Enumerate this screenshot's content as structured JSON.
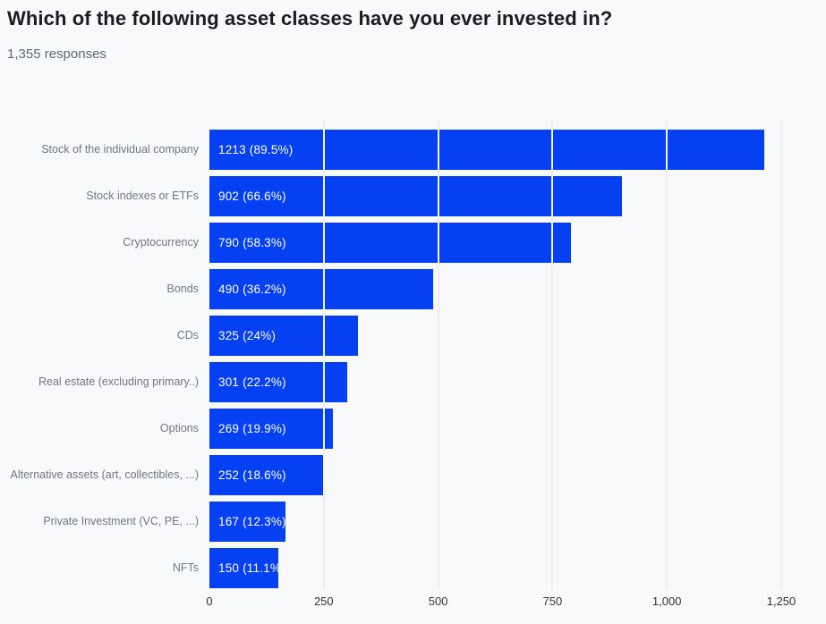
{
  "header": {
    "title": "Which of the following asset classes have you ever invested in?",
    "subtitle": "1,355 responses"
  },
  "chart_data": {
    "type": "bar",
    "orientation": "horizontal",
    "title": "Which of the following asset classes have you ever invested in?",
    "subtitle": "1,355 responses",
    "total_responses": 1355,
    "categories": [
      "Stock of the individual company",
      "Stock indexes or ETFs",
      "Cryptocurrency",
      "Bonds",
      "CDs",
      "Real estate (excluding primary..)",
      "Options",
      "Alternative assets (art, collectibles, ...)",
      "Private Investment (VC, PE, ...)",
      "NFTs"
    ],
    "values": [
      1213,
      902,
      790,
      490,
      325,
      301,
      269,
      252,
      167,
      150
    ],
    "percentages": [
      89.5,
      66.6,
      58.3,
      36.2,
      24,
      22.2,
      19.9,
      18.6,
      12.3,
      11.1
    ],
    "bar_labels": [
      "1213 (89.5%)",
      "902 (66.6%)",
      "790 (58.3%)",
      "490 (36.2%)",
      "325 (24%)",
      "301 (22.2%)",
      "269 (19.9%)",
      "252 (18.6%)",
      "167 (12.3%)",
      "150 (11.1%)"
    ],
    "xlim": [
      0,
      1250
    ],
    "x_ticks": [
      0,
      250,
      500,
      750,
      1000,
      1250
    ],
    "x_tick_labels": [
      "0",
      "250",
      "500",
      "750",
      "1,000",
      "1,250"
    ],
    "grid": true,
    "grid_interval": 250,
    "legend_position": "none",
    "colors": {
      "bar": "#0540f2",
      "bar_value_text": "#ffffff",
      "background": "#f8f9fa",
      "gridline": "#e2e4e9",
      "bar_gridline_overlay": "#f2f4ff",
      "title_text": "#1a1c20",
      "subtitle_text": "#5f6772",
      "category_text": "#72777f",
      "axis_text": "#303338"
    }
  }
}
